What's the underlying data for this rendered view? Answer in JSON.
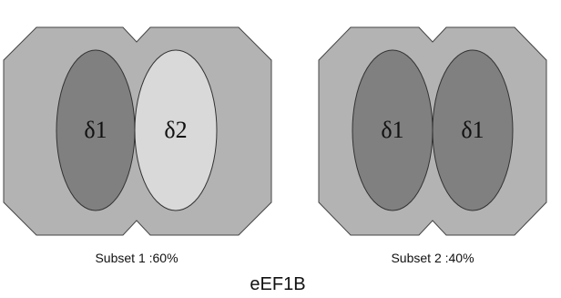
{
  "panels": [
    {
      "ellipses": [
        {
          "label": "δ1"
        },
        {
          "label": "δ2"
        }
      ],
      "caption": "Subset 1 :60%"
    },
    {
      "ellipses": [
        {
          "label": "δ1"
        },
        {
          "label": "δ1"
        }
      ],
      "caption": "Subset 2 :40%"
    }
  ],
  "title": "eEF1B"
}
